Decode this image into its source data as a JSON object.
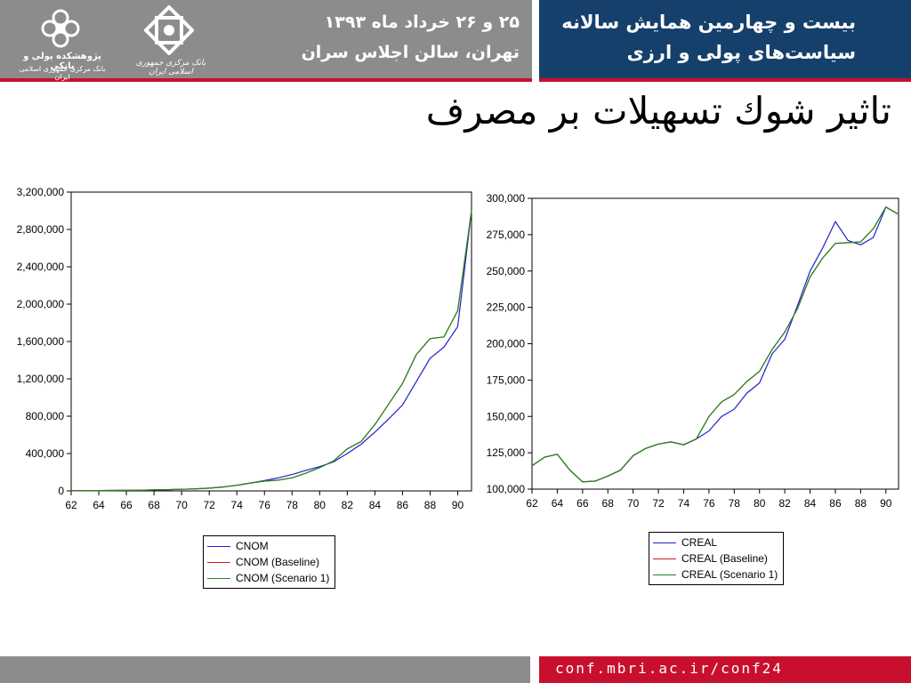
{
  "header": {
    "conference_date": "۲۵ و ۲۶ خرداد ماه ۱۳۹۳",
    "conference_location": "تهران، سالن اجلاس سران",
    "conference_title_line1": "بیست و چهارمین همایش سالانه",
    "conference_title_line2": "سیاست‌های پولی و ارزی",
    "logo1_line1": "پژوهشکده پولی و بانکی",
    "logo1_line2": "بانک مرکزی جمهوری اسلامی ایران",
    "logo2_line1": "بانک مرکزی جمهوری اسلامی ایران",
    "colors": {
      "gray": "#8c8c8c",
      "blue": "#15406b",
      "red": "#c8102e"
    }
  },
  "slide_title": "تاثیر شوك تسهیلات بر مصرف",
  "footer": {
    "url": "conf.mbri.ac.ir/conf24"
  },
  "chart_data": [
    {
      "type": "line",
      "ylim": [
        0,
        3200000
      ],
      "yticks": [
        0,
        400000,
        800000,
        1200000,
        1600000,
        2000000,
        2400000,
        2800000,
        3200000
      ],
      "ytick_labels": [
        "0",
        "400,000",
        "800,000",
        "1,200,000",
        "1,600,000",
        "2,000,000",
        "2,400,000",
        "2,800,000",
        "3,200,000"
      ],
      "xlim": [
        62,
        91
      ],
      "xticks": [
        62,
        64,
        66,
        68,
        70,
        72,
        74,
        76,
        78,
        80,
        82,
        84,
        86,
        88,
        90
      ],
      "xtick_labels": [
        "62",
        "64",
        "66",
        "68",
        "70",
        "72",
        "74",
        "76",
        "78",
        "80",
        "82",
        "84",
        "86",
        "88",
        "90"
      ],
      "x": [
        62,
        63,
        64,
        65,
        66,
        67,
        68,
        69,
        70,
        71,
        72,
        73,
        74,
        75,
        76,
        77,
        78,
        79,
        80,
        81,
        82,
        83,
        84,
        85,
        86,
        87,
        88,
        89,
        90,
        91
      ],
      "series": [
        {
          "name": "CNOM",
          "color": "#1f1fcc",
          "values": [
            2000,
            3000,
            4000,
            5000,
            6000,
            8000,
            10000,
            13000,
            17000,
            22000,
            30000,
            42000,
            60000,
            85000,
            110000,
            140000,
            175000,
            220000,
            260000,
            310000,
            400000,
            500000,
            630000,
            770000,
            920000,
            1170000,
            1420000,
            1540000,
            1760000,
            3000000
          ]
        },
        {
          "name": "CNOM (Baseline)",
          "color": "#cc1f1f",
          "values": [
            2000,
            3000,
            4000,
            5000,
            6000,
            8000,
            10000,
            13000,
            17000,
            22000,
            30000,
            42000,
            60000,
            85000,
            105000,
            115000,
            140000,
            190000,
            250000,
            320000,
            450000,
            530000,
            710000,
            930000,
            1150000,
            1460000,
            1630000,
            1650000,
            1930000,
            3000000
          ]
        },
        {
          "name": "CNOM (Scenario 1)",
          "color": "#1f8a1f",
          "values": [
            2000,
            3000,
            4000,
            5000,
            6000,
            8000,
            10000,
            13000,
            17000,
            22000,
            30000,
            42000,
            60000,
            85000,
            105000,
            115000,
            140000,
            190000,
            250000,
            320000,
            450000,
            530000,
            710000,
            930000,
            1150000,
            1460000,
            1630000,
            1650000,
            1930000,
            3000000
          ]
        }
      ]
    },
    {
      "type": "line",
      "ylim": [
        100000,
        300000
      ],
      "yticks": [
        100000,
        125000,
        150000,
        175000,
        200000,
        225000,
        250000,
        275000,
        300000
      ],
      "ytick_labels": [
        "100,000",
        "125,000",
        "150,000",
        "175,000",
        "200,000",
        "225,000",
        "250,000",
        "275,000",
        "300,000"
      ],
      "xlim": [
        62,
        91
      ],
      "xticks": [
        62,
        64,
        66,
        68,
        70,
        72,
        74,
        76,
        78,
        80,
        82,
        84,
        86,
        88,
        90
      ],
      "xtick_labels": [
        "62",
        "64",
        "66",
        "68",
        "70",
        "72",
        "74",
        "76",
        "78",
        "80",
        "82",
        "84",
        "86",
        "88",
        "90"
      ],
      "x": [
        62,
        63,
        64,
        65,
        66,
        67,
        68,
        69,
        70,
        71,
        72,
        73,
        74,
        75,
        76,
        77,
        78,
        79,
        80,
        81,
        82,
        83,
        84,
        85,
        86,
        87,
        88,
        89,
        90,
        91
      ],
      "series": [
        {
          "name": "CREAL",
          "color": "#1f1fcc",
          "values": [
            116000,
            122000,
            124000,
            113000,
            105000,
            105500,
            109000,
            113000,
            123000,
            128000,
            131000,
            132500,
            130500,
            134500,
            140000,
            150000,
            155000,
            166000,
            173000,
            193000,
            203000,
            226000,
            250000,
            266000,
            284000,
            271000,
            268000,
            273000,
            294000,
            289000
          ]
        },
        {
          "name": "CREAL (Baseline)",
          "color": "#cc1f1f",
          "values": [
            116000,
            122000,
            124000,
            113000,
            105000,
            105500,
            109000,
            113000,
            123000,
            128000,
            131000,
            132500,
            130500,
            134500,
            150000,
            160000,
            165000,
            174000,
            181000,
            196000,
            208000,
            224000,
            246000,
            259000,
            269000,
            269500,
            270000,
            279000,
            294000,
            289000
          ]
        },
        {
          "name": "CREAL (Scenario 1)",
          "color": "#1f8a1f",
          "values": [
            116000,
            122000,
            124000,
            113000,
            105000,
            105500,
            109000,
            113000,
            123000,
            128000,
            131000,
            132500,
            130500,
            134500,
            150000,
            160000,
            165000,
            174000,
            181000,
            196000,
            208000,
            224000,
            246000,
            259000,
            269000,
            269500,
            270000,
            279000,
            294000,
            289000
          ]
        }
      ]
    }
  ]
}
